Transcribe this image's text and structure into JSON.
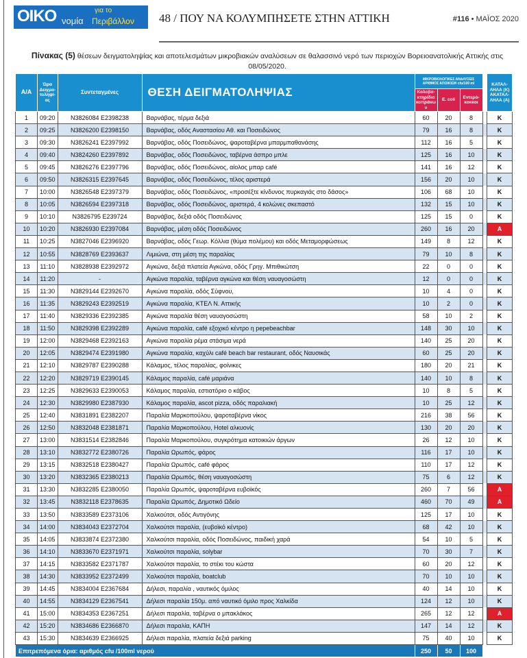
{
  "header": {
    "logo_main": "OIKO",
    "logo_sub": "νομία",
    "logo_tag1": "για το",
    "logo_tag2": "Περιβάλλον",
    "page_title": "48 / ΠΟΥ ΝΑ ΚΟΛΥΜΠΗΣΕΤΕ ΣΤΗΝ ΑΤΤΙΚΗ",
    "issue_no": "#116",
    "issue_date": "• ΜΑΪΟΣ 2020"
  },
  "caption": {
    "label": "Πίνακας (5)",
    "text": " θέσεων δειγματοληψίας και αποτελεσμάτων μικροβιακών αναλύσεων σε θαλασσινό νερό των περιοχών Βορειοανατολικής Αττικής στις 08/05/2020."
  },
  "table": {
    "headers": {
      "aa": "Α/Α",
      "time": "Ώρα Δειγμα-τοληψί-ας",
      "coords": "Συντεταγμένες",
      "location": "ΘΕΣΗ ΔΕΙΓΜΑΤΟΛΗΨΙΑΣ",
      "micro": "ΜΙΚΡΟΒΙΟΛΟΓΙΚΕΣ ΑΝΑΛΥΣΕΙΣ ΑΡΙΘΜΟΣ ΑΠΟΙΚΙΩΝ cfu/100 ml",
      "coli": "Κολοβα-κτηρίδια κοπράνων",
      "ecoli": "E. coli",
      "entero": "Εντερό-κοκκοι",
      "status": "ΚΑΤΑΛ-ΛΗΛΑ (Κ) ΑΚΑΤΑΛ-ΛΗΛΑ (Α)"
    },
    "rows": [
      [
        "1",
        "09:20",
        "N3826084 E2398238",
        "Βαρνάβας, τέρμα δεξιά",
        "60",
        "20",
        "8",
        "Κ"
      ],
      [
        "2",
        "09:25",
        "N3826200 E2398150",
        "Βαρνάβας, οδός Αναστασίου Αθ. και Ποσειδώνος",
        "79",
        "16",
        "8",
        "Κ"
      ],
      [
        "3",
        "09:30",
        "N3826241 E2397992",
        "Βαρνάβας, οδός Ποσειδώνος, ψαροταβέρνα μπαρμπαθανάσης",
        "112",
        "16",
        "5",
        "Κ"
      ],
      [
        "4",
        "09:40",
        "N3824260 E2397892",
        "Βαρνάβας, οδός Ποσειδώνος, ταβέρνα άσπρο μπλε",
        "125",
        "16",
        "10",
        "Κ"
      ],
      [
        "5",
        "09:45",
        "N3826276 E2397796",
        "Βαρνάβας, οδός Ποσειδώνος, αίολος μπαρ café",
        "141",
        "16",
        "12",
        "Κ"
      ],
      [
        "6",
        "09:50",
        "N3826315 E2397645",
        "Βαρνάβας, οδός Ποσειδώνος, τέλος αριστερά",
        "156",
        "20",
        "10",
        "Κ"
      ],
      [
        "7",
        "10:00",
        "N3826548 E2397379",
        "Βαρνάβας, οδός Ποσειδώνος, «προσέξτε κίνδυνος πυρκαγιάς στο δάσος»",
        "106",
        "68",
        "10",
        "Κ"
      ],
      [
        "8",
        "10:05",
        "N3826594 E2397318",
        "Βαρνάβας, οδός Ποσειδώνος, αριστερά, 4 κολώνες σκεπαστό",
        "132",
        "15",
        "10",
        "Κ"
      ],
      [
        "9",
        "10:10",
        "N3826795 E239724",
        "Βαρνάβας, δεξιά οδός Ποσειδώνος",
        "125",
        "15",
        "0",
        "Κ"
      ],
      [
        "10",
        "10:20",
        "N3826930 E2397084",
        "Βαρνάβας, μέση οδός Ποσειδώνος",
        "260",
        "16",
        "20",
        "Α"
      ],
      [
        "11",
        "10:25",
        "N3827046 E2396920",
        "Βαρνάβας, οδός Γεωρ. Κόλλια (θύμα πολέμου) και οδός Μεταμορφώσεως",
        "149",
        "8",
        "12",
        "Κ"
      ],
      [
        "12",
        "10:55",
        "N3828769 E2393637",
        "Λιμιώνα, στη μέση της παραλίας",
        "79",
        "10",
        "8",
        "Κ"
      ],
      [
        "13",
        "11:10",
        "N3828938 E2392972",
        "Αγκώνα, δεξιά πλατεία Αγκώνα, οδός Γρηγ. Μπιθικώτση",
        "22",
        "0",
        "0",
        "Κ"
      ],
      [
        "14",
        "11:20",
        "-",
        "Αγκώνα παραλία, ταβέρνα αγκώνα και  θέση ναυαγοσώστη",
        "12",
        "0",
        "0",
        "Κ"
      ],
      [
        "15",
        "11:30",
        "N3829144 E2392670",
        "Αγκώνα παραλία, οδός Σύφνου,",
        "10",
        "4",
        "0",
        "Κ"
      ],
      [
        "16",
        "11:35",
        "N3829243 E2392519",
        "Αγκώνα παραλία, ΚΤΕΛ Ν. Αττικής",
        "10",
        "2",
        "0",
        "Κ"
      ],
      [
        "17",
        "11:40",
        "N3829336 E2392385",
        "Αγκώνα παραλία θέση ναυαγοσώστη",
        "58",
        "10",
        "2",
        "Κ"
      ],
      [
        "18",
        "11:50",
        "N3829398 E2392289",
        "Αγκώνα παραλία, café εξοχικό κέντρο η pepebeachbar",
        "148",
        "30",
        "10",
        "Κ"
      ],
      [
        "19",
        "12:00",
        "N3829468 E2392163",
        "Αγκώνα παραλία ρέμα στάσιμα νερά",
        "140",
        "25",
        "20",
        "Κ"
      ],
      [
        "20",
        "12:05",
        "N3829474 E2391980",
        "Αγκώνα παραλία, καχύλι café beach bar restaurant, οδός Ναυσικάς",
        "60",
        "25",
        "20",
        "Κ"
      ],
      [
        "21",
        "12:10",
        "N3829787 E2390288",
        "Κάλαμος, τέλος παραλίας, φοίνικες",
        "180",
        "20",
        "21",
        "Κ"
      ],
      [
        "22",
        "12:20",
        "N3829719 E2390145",
        "Κάλαμος παραλία, café μαριάνα",
        "140",
        "10",
        "8",
        "Κ"
      ],
      [
        "23",
        "12:25",
        "N3829633 E2390053",
        "Κάλαμος παραλία, εστιατόριο ο κάβος",
        "10",
        "8",
        "5",
        "Κ"
      ],
      [
        "24",
        "12:30",
        "N3829980 E2387930",
        "Κάλαμος παραλία, ascot pizza, οδός παραλιακή",
        "10",
        "25",
        "12",
        "Κ"
      ],
      [
        "25",
        "12:40",
        "N3831891 E2382207",
        "Παραλία Μαρκοπούλου, ψαροταβέρνα νίκος",
        "216",
        "38",
        "56",
        "Κ"
      ],
      [
        "26",
        "12:50",
        "N3832048 E2381871",
        "Παραλία Μαρκοπούλου, Hotel αλκυονίς",
        "130",
        "20",
        "20",
        "Κ"
      ],
      [
        "27",
        "13:00",
        "N3831514 E2382846",
        "Παραλία Μαρκοπούλου, συγκρότημα κατοικιών άργων",
        "26",
        "12",
        "10",
        "Κ"
      ],
      [
        "28",
        "13:10",
        "N3832772 E2380726",
        "Παραλία Ωρωπός, φάρος",
        "116",
        "17",
        "10",
        "Κ"
      ],
      [
        "29",
        "13:15",
        "N3832518 E2380427",
        "Παραλία Ωρωπός, café φάρος",
        "110",
        "17",
        "12",
        "Κ"
      ],
      [
        "30",
        "13:20",
        "N3832365 E2380213",
        "Παραλία Ωρωπός,  θέση ναυαγοσώστη",
        "75",
        "6",
        "12",
        "Κ"
      ],
      [
        "31",
        "13:30",
        "N3832285 E2380050",
        "Παραλία Ωρωπός, ψαροταβέρνα ευβοϊκός",
        "260",
        "7",
        "56",
        "Α"
      ],
      [
        "32",
        "13:45",
        "N3832118 E2378635",
        "Παραλία Ωρωπός, Δημοτικό Ωδείο",
        "460",
        "70",
        "49",
        "Α"
      ],
      [
        "33",
        "13:50",
        "N3833589 E2373106",
        "Χαλκούτσι, οδός Αντιγόνης",
        "125",
        "17",
        "10",
        "Κ"
      ],
      [
        "34",
        "14:00",
        "N3834043 E2372704",
        "Χαλκούτσι παραλία, (ευβοϊκό κέντρο)",
        "68",
        "42",
        "10",
        "Κ"
      ],
      [
        "35",
        "14:05",
        "N3833874 E2372380",
        "Χαλκούτσι παραλία, οδός Ποσειδώνος, παιδική χαρά",
        "54",
        "10",
        "5",
        "Κ"
      ],
      [
        "36",
        "14:10",
        "N3833670 E2371971",
        "Χαλκούτσι παραλία, solybar",
        "70",
        "30",
        "7",
        "Κ"
      ],
      [
        "37",
        "14:15",
        "N3833582 E2371787",
        "Χαλκούτσι παραλία, το στέκι του κώστα",
        "60",
        "20",
        "12",
        "Κ"
      ],
      [
        "38",
        "14:30",
        "N3833952 E2372499",
        "Χαλκούτσι παραλία, boatclub",
        "70",
        "10",
        "10",
        "Κ"
      ],
      [
        "39",
        "14:45",
        "N3834004 E2367684",
        "Δήλεσι, παραλία , ναυτικός όμιλος",
        "40",
        "14",
        "10",
        "Κ"
      ],
      [
        "40",
        "14:55",
        "N3834129 E2367541",
        "Δήλεσι παραλία 150μ. από ναυτικό όμιλο προς Χαλκίδα",
        "124",
        "12",
        "10",
        "Κ"
      ],
      [
        "41",
        "15:00",
        "N3834353 E2367251",
        "Δήλεσι παραλία, ταβέρνα ο μπακλάκος",
        "265",
        "12",
        "12",
        "Α"
      ],
      [
        "42",
        "15:20",
        "N3834686 E2366870",
        "Δήλεσι παραλία, ΚΑΠΗ",
        "147",
        "14",
        "12",
        "Κ"
      ],
      [
        "43",
        "15:30",
        "N3834639 E2366925",
        "Δήλεσι παραλία, πλατεία δεξιά parking",
        "75",
        "40",
        "10",
        "Κ"
      ]
    ],
    "footer": {
      "label": "Επιτρεπόμενα όρια: αριθμός cfu /100ml νερού",
      "coli": "250",
      "ecoli": "50",
      "entero": "100"
    }
  },
  "colors": {
    "header_blue": "#1a8fd0",
    "subheader_red": "#d9214e",
    "unsuitable_red": "#e0202a",
    "row_alt": "#d6e4f2"
  }
}
